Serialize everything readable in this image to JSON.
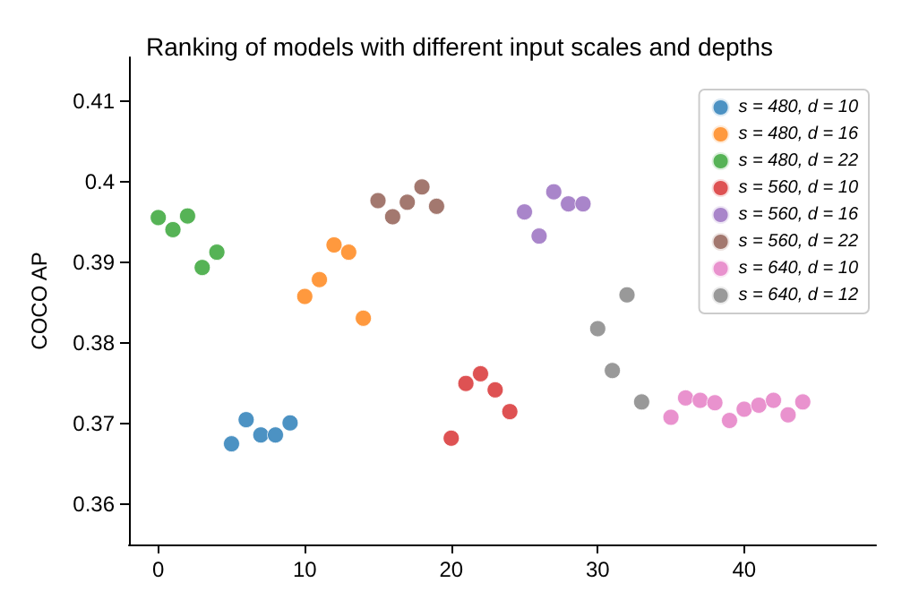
{
  "chart_data": {
    "type": "scatter",
    "title": "Ranking of models with different input scales and depths",
    "ylabel": "COCO AP",
    "xlim": [
      -2,
      49
    ],
    "xticks": [
      0,
      10,
      20,
      30,
      40
    ],
    "ylim": [
      0.355,
      0.4155
    ],
    "yticks": [
      0.36,
      0.37,
      0.38,
      0.39,
      0.4,
      0.41
    ],
    "grid": false,
    "legend": "top right",
    "marker": "circle",
    "series": [
      {
        "name": "s = 480, d = 10",
        "color": "#1f77b4",
        "x": [
          5,
          6,
          7,
          8,
          9
        ],
        "values": [
          0.3675,
          0.3705,
          0.3686,
          0.3686,
          0.3701
        ]
      },
      {
        "name": "s = 480, d = 16",
        "color": "#ff7f0e",
        "x": [
          10,
          11,
          12,
          13,
          14
        ],
        "values": [
          0.3858,
          0.3879,
          0.3922,
          0.3913,
          0.3831
        ]
      },
      {
        "name": "s = 480, d = 22",
        "color": "#2ca02c",
        "x": [
          0,
          1,
          2,
          3,
          4
        ],
        "values": [
          0.3956,
          0.3941,
          0.3958,
          0.3894,
          0.3913
        ]
      },
      {
        "name": "s = 560, d = 10",
        "color": "#d62728",
        "x": [
          20,
          21,
          22,
          23,
          24
        ],
        "values": [
          0.3682,
          0.375,
          0.3762,
          0.3742,
          0.3715
        ]
      },
      {
        "name": "s = 560, d = 16",
        "color": "#9467bd",
        "x": [
          25,
          26,
          27,
          28,
          29
        ],
        "values": [
          0.3963,
          0.3933,
          0.3988,
          0.3973,
          0.3973
        ]
      },
      {
        "name": "s = 560, d = 22",
        "color": "#8c564b",
        "x": [
          15,
          16,
          17,
          18,
          19
        ],
        "values": [
          0.3977,
          0.3957,
          0.3975,
          0.3994,
          0.397
        ]
      },
      {
        "name": "s = 640, d = 10",
        "color": "#e377c2",
        "x": [
          35,
          36,
          37,
          38,
          39,
          40,
          41,
          42,
          43,
          44
        ],
        "values": [
          0.3708,
          0.3732,
          0.3729,
          0.3726,
          0.3704,
          0.3718,
          0.3723,
          0.3729,
          0.3711,
          0.3727
        ]
      },
      {
        "name": "s = 640, d = 12",
        "color": "#7f7f7f",
        "x": [
          30,
          31,
          32,
          33
        ],
        "values": [
          0.3818,
          0.3766,
          0.386,
          0.3727
        ]
      }
    ]
  }
}
